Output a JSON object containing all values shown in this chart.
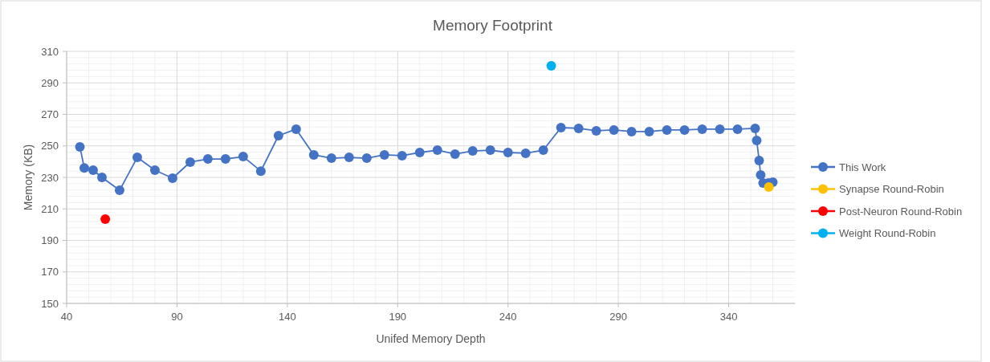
{
  "chart_data": {
    "type": "line",
    "title": "Memory Footprint",
    "xlabel": "Unifed Memory Depth",
    "ylabel": "Memory (KB)",
    "xlim": [
      40,
      370
    ],
    "xticks": [
      40,
      90,
      140,
      190,
      240,
      290,
      340
    ],
    "ylim": [
      150,
      310
    ],
    "yticks": [
      150,
      170,
      190,
      210,
      230,
      250,
      270,
      290,
      310
    ],
    "grid": true,
    "legend": "right",
    "marker": "circle",
    "line_style": "solid",
    "series": [
      {
        "name": "This Work",
        "color": "#4472c4",
        "x": [
          46,
          48,
          52,
          56,
          64,
          72,
          80,
          88,
          96,
          104,
          112,
          120,
          128,
          136,
          144,
          152,
          160,
          168,
          176,
          184,
          192,
          200,
          208,
          216,
          224,
          232,
          240,
          248,
          256,
          264,
          272,
          280,
          288,
          296,
          304,
          312,
          320,
          328,
          336,
          344,
          352,
          352.7,
          353.8,
          354.5,
          355.6,
          358,
          360
        ],
        "values": [
          249.4,
          236,
          234.6,
          230,
          221.8,
          242.7,
          234.6,
          229.5,
          239.7,
          241.7,
          241.7,
          243.2,
          234,
          256.5,
          260.6,
          244.3,
          242.2,
          242.7,
          242.2,
          244.3,
          243.8,
          245.8,
          247.3,
          244.8,
          246.8,
          247.3,
          245.8,
          245.3,
          247.3,
          261.6,
          261.1,
          259.6,
          260.1,
          259.1,
          259.1,
          260.1,
          260.1,
          260.6,
          260.6,
          260.6,
          261.1,
          253.4,
          240.7,
          231.5,
          226.4,
          226.4,
          227
        ]
      },
      {
        "name": "Synapse Round-Robin",
        "color": "#ffc000",
        "x": [
          358.2
        ],
        "values": [
          223.9
        ]
      },
      {
        "name": "Post-Neuron Round-Robin",
        "color": "#ff0000",
        "x": [
          57.5
        ],
        "values": [
          203.5
        ]
      },
      {
        "name": "Weight Round-Robin",
        "color": "#00b0f0",
        "x": [
          259.6
        ],
        "values": [
          300.8
        ]
      }
    ]
  }
}
